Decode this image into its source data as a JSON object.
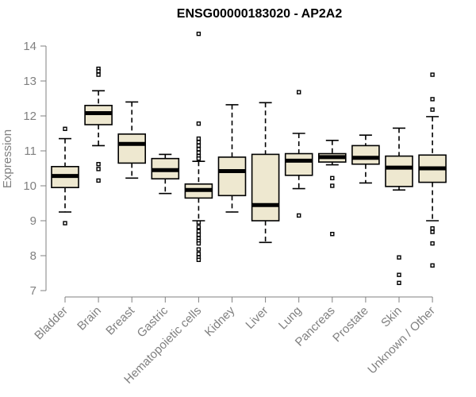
{
  "chart_data": {
    "type": "boxplot",
    "title": "ENSG00000183020 - AP2A2",
    "xlabel": "",
    "ylabel": "Expression",
    "ylim": [
      7,
      14
    ],
    "yticks": [
      7,
      8,
      9,
      10,
      11,
      12,
      13,
      14
    ],
    "colors": {
      "box_fill": "#EEE8D0",
      "box_stroke": "#000000",
      "axis": "#808080",
      "text": "#808080"
    },
    "categories": [
      "Bladder",
      "Brain",
      "Breast",
      "Gastric",
      "Hematopoietic cells",
      "Kidney",
      "Liver",
      "Lung",
      "Pancreas",
      "Prostate",
      "Skin",
      "Unknown / Other"
    ],
    "series": [
      {
        "name": "Bladder",
        "q1": 9.95,
        "median": 10.28,
        "q3": 10.55,
        "whisker_low": 9.25,
        "whisker_high": 11.35,
        "outliers": [
          8.93,
          11.63
        ]
      },
      {
        "name": "Brain",
        "q1": 11.75,
        "median": 12.08,
        "q3": 12.3,
        "whisker_low": 11.15,
        "whisker_high": 12.72,
        "outliers": [
          13.35,
          13.28,
          13.18,
          10.62,
          10.48,
          10.15
        ]
      },
      {
        "name": "Breast",
        "q1": 10.65,
        "median": 11.2,
        "q3": 11.48,
        "whisker_low": 10.22,
        "whisker_high": 12.4,
        "outliers": []
      },
      {
        "name": "Gastric",
        "q1": 10.2,
        "median": 10.45,
        "q3": 10.78,
        "whisker_low": 9.78,
        "whisker_high": 10.9,
        "outliers": []
      },
      {
        "name": "Hematopoietic cells",
        "q1": 9.65,
        "median": 9.88,
        "q3": 10.05,
        "whisker_low": 9.0,
        "whisker_high": 10.7,
        "outliers": [
          14.35,
          11.78,
          11.35,
          11.25,
          11.15,
          11.05,
          10.95,
          10.85,
          10.78,
          8.95,
          8.82,
          8.7,
          8.6,
          8.5,
          8.42,
          8.35,
          8.18,
          8.05,
          7.95,
          7.88
        ]
      },
      {
        "name": "Kidney",
        "q1": 9.72,
        "median": 10.42,
        "q3": 10.82,
        "whisker_low": 9.25,
        "whisker_high": 12.32,
        "outliers": []
      },
      {
        "name": "Liver",
        "q1": 9.0,
        "median": 9.45,
        "q3": 10.9,
        "whisker_low": 8.38,
        "whisker_high": 12.38,
        "outliers": []
      },
      {
        "name": "Lung",
        "q1": 10.3,
        "median": 10.72,
        "q3": 10.92,
        "whisker_low": 9.92,
        "whisker_high": 11.5,
        "outliers": [
          12.68,
          9.15
        ]
      },
      {
        "name": "Pancreas",
        "q1": 10.68,
        "median": 10.82,
        "q3": 10.92,
        "whisker_low": 10.6,
        "whisker_high": 11.3,
        "outliers": [
          10.22,
          10.0,
          8.62
        ]
      },
      {
        "name": "Prostate",
        "q1": 10.62,
        "median": 10.8,
        "q3": 11.15,
        "whisker_low": 10.08,
        "whisker_high": 11.45,
        "outliers": []
      },
      {
        "name": "Skin",
        "q1": 9.98,
        "median": 10.52,
        "q3": 10.85,
        "whisker_low": 9.88,
        "whisker_high": 11.65,
        "outliers": [
          7.95,
          7.45,
          7.22
        ]
      },
      {
        "name": "Unknown / Other",
        "q1": 10.1,
        "median": 10.5,
        "q3": 10.88,
        "whisker_low": 9.0,
        "whisker_high": 11.98,
        "outliers": [
          13.18,
          12.48,
          12.18,
          8.78,
          8.68,
          8.35,
          7.72
        ]
      }
    ]
  }
}
